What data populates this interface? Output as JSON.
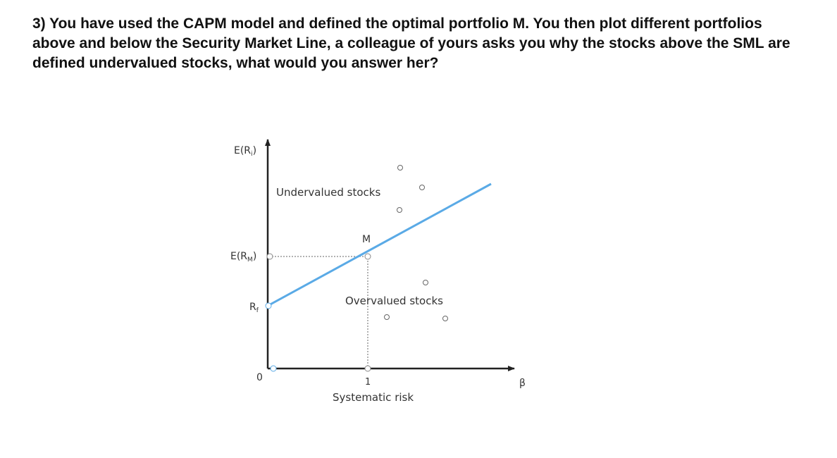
{
  "question": {
    "text": "3) You have used the CAPM model and defined the optimal portfolio M. You then plot different portfolios above and below the Security Market Line, a colleague of yours asks you why the stocks above the SML are defined undervalued stocks, what would you answer her?"
  },
  "figure": {
    "y_axis_label": "E(R",
    "y_axis_label_sub": "i",
    "y_axis_label_close": ")",
    "erm_label": "E(R",
    "erm_label_sub": "M",
    "erm_label_close": ")",
    "rf_label": "R",
    "rf_label_sub": "f",
    "origin_label": "0",
    "beta_one_label": "1",
    "x_axis_label": "β",
    "x_axis_title": "Systematic risk",
    "market_label": "M",
    "undervalued_label": "Undervalued stocks",
    "overvalued_label": "Overvalued stocks",
    "colors": {
      "sml_line": "#5aaae6",
      "axis": "#222222",
      "dashed_guide": "#666666",
      "points": "#666666"
    }
  }
}
